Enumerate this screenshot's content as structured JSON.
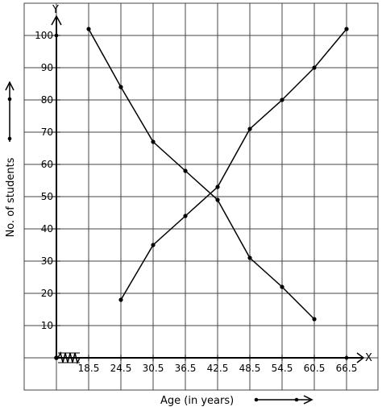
{
  "chart_data": {
    "type": "line",
    "title": "",
    "xlabel": "Age (in years)",
    "ylabel": "No. of students",
    "x_axis_letter": "X",
    "y_axis_letter": "Y",
    "xlim": [
      12.5,
      72.5
    ],
    "ylim": [
      0,
      110
    ],
    "x_ticks": [
      "18.5",
      "24.5",
      "30.5",
      "36.5",
      "42.5",
      "48.5",
      "54.5",
      "60.5",
      "66.5"
    ],
    "y_ticks": [
      "10",
      "20",
      "30",
      "40",
      "50",
      "60",
      "70",
      "80",
      "90",
      "100"
    ],
    "grid": true,
    "series": [
      {
        "x": [
          18.5,
          24.5,
          30.5,
          36.5,
          42.5,
          48.5,
          54.5,
          60.5
        ],
        "y": [
          102,
          84,
          67,
          58,
          49,
          31,
          22,
          12
        ]
      },
      {
        "x": [
          24.5,
          30.5,
          36.5,
          42.5,
          48.5,
          54.5,
          60.5,
          66.5
        ],
        "y": [
          18,
          35,
          44,
          53,
          71,
          80,
          90,
          102
        ]
      }
    ]
  }
}
